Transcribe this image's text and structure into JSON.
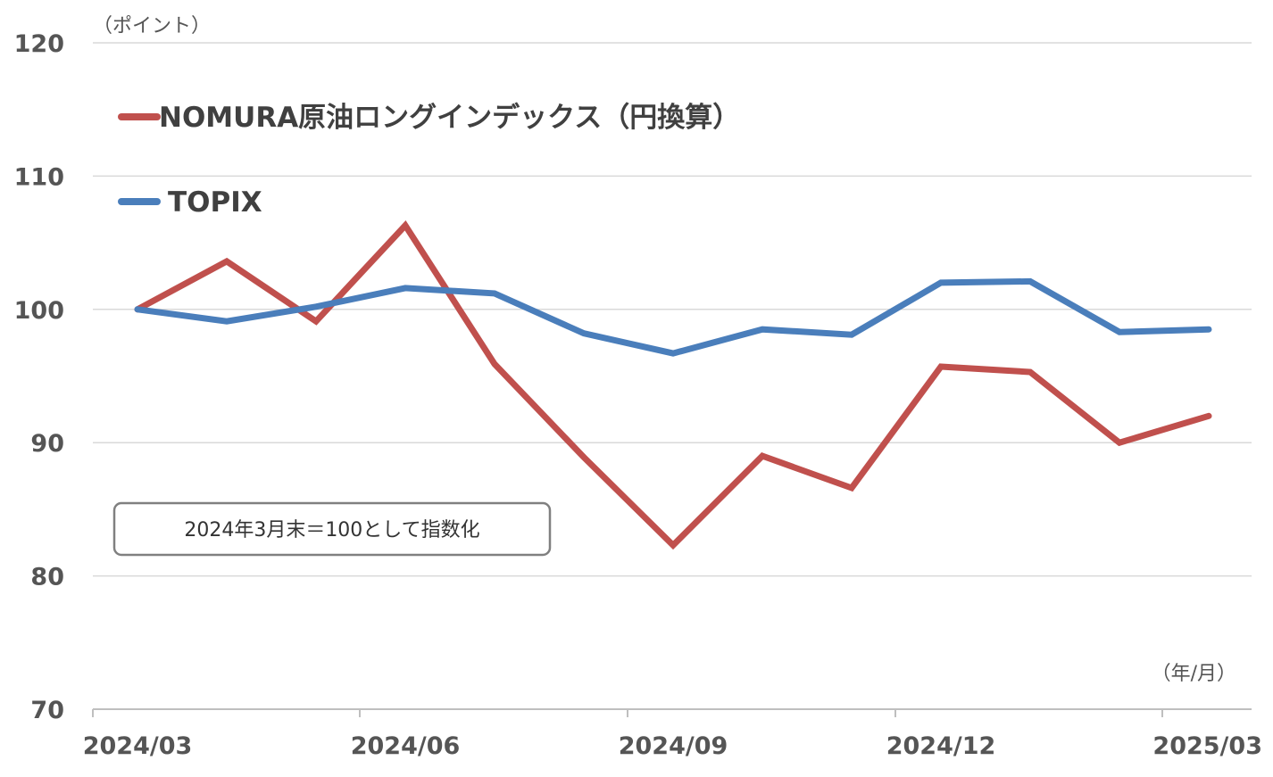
{
  "chart_data": {
    "type": "line",
    "ylabel": "（ポイント）",
    "xlabel": "（年/月）",
    "ylim": [
      70,
      120
    ],
    "yticks": [
      "120",
      "110",
      "100",
      "90",
      "80",
      "70"
    ],
    "x": [
      "2024/03",
      "2024/04",
      "2024/05",
      "2024/06",
      "2024/07",
      "2024/08",
      "2024/09",
      "2024/10",
      "2024/11",
      "2024/12",
      "2025/01",
      "2025/02",
      "2025/03"
    ],
    "xtick_labels": [
      "2024/03",
      "2024/06",
      "2024/09",
      "2024/12",
      "2025/03"
    ],
    "series": [
      {
        "name": "NOMURA原油ロングインデックス（円換算）",
        "color": "#c0504d",
        "values": [
          100,
          103.6,
          99.1,
          106.3,
          95.9,
          88.9,
          82.3,
          89,
          86.6,
          95.7,
          95.3,
          90,
          92
        ]
      },
      {
        "name": "TOPIX",
        "color": "#4a7ebb",
        "values": [
          100,
          99.1,
          100.2,
          101.6,
          101.2,
          98.2,
          96.7,
          98.5,
          98.1,
          102,
          102.1,
          98.3,
          98.5
        ]
      }
    ],
    "annotation": "2024年3月末＝100として指数化",
    "legend_position": "top-left",
    "grid": "horizontal"
  }
}
